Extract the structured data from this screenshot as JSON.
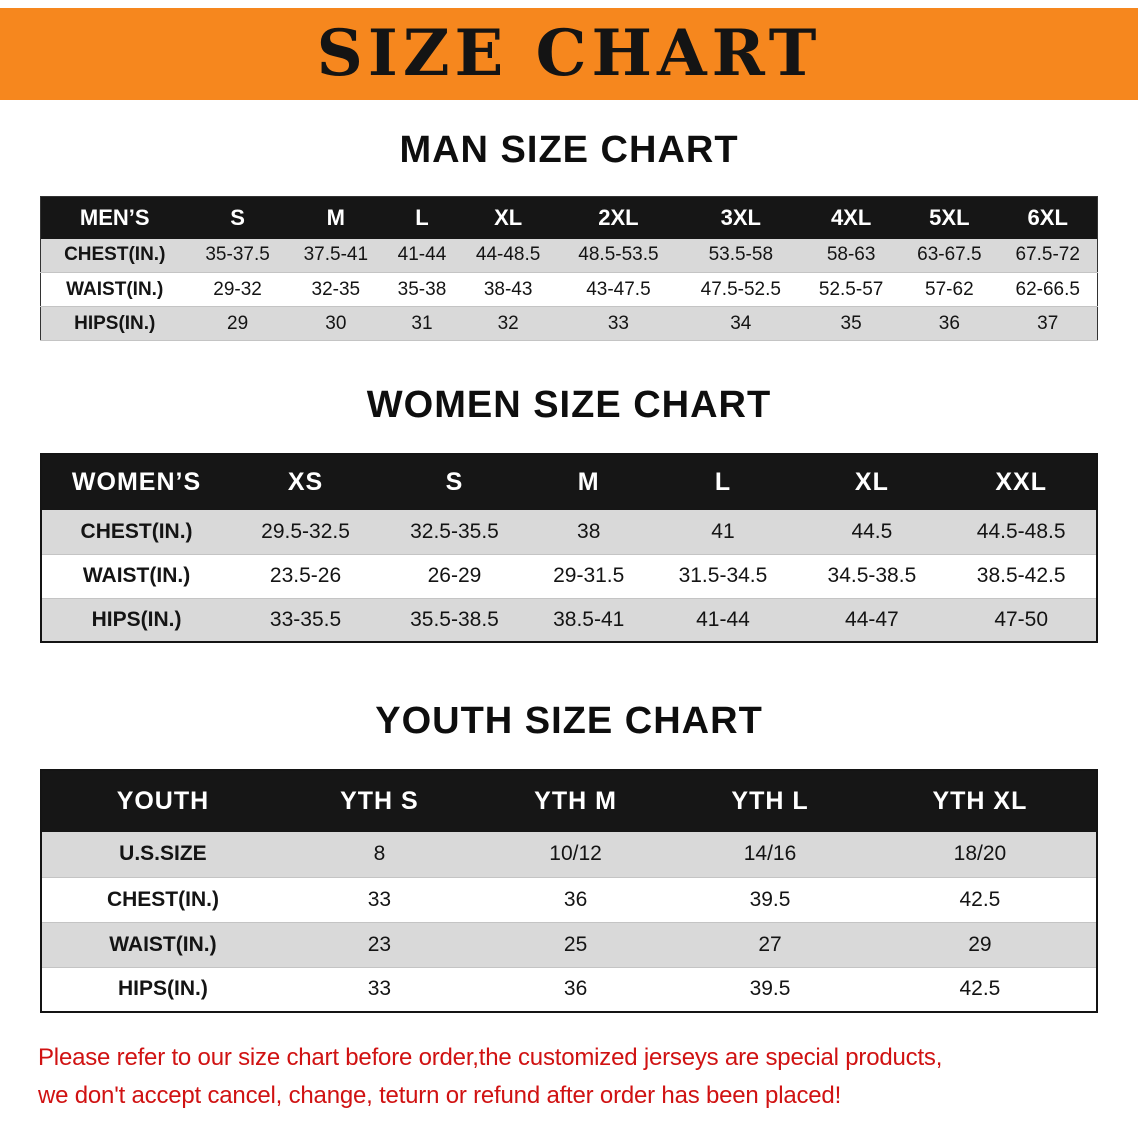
{
  "banner": {
    "title": "SIZE CHART"
  },
  "colors": {
    "banner_bg": "#F6871E",
    "header_bg": "#161616",
    "row_gray": "#D9D9D9",
    "disclaimer_red": "#D01212"
  },
  "sections": [
    {
      "heading": "MAN SIZE CHART",
      "table": {
        "header": [
          "MEN’S",
          "S",
          "M",
          "L",
          "XL",
          "2XL",
          "3XL",
          "4XL",
          "5XL",
          "6XL"
        ],
        "rows": [
          [
            "CHEST(IN.)",
            "35-37.5",
            "37.5-41",
            "41-44",
            "44-48.5",
            "48.5-53.5",
            "53.5-58",
            "58-63",
            "63-67.5",
            "67.5-72"
          ],
          [
            "WAIST(IN.)",
            "29-32",
            "32-35",
            "35-38",
            "38-43",
            "43-47.5",
            "47.5-52.5",
            "52.5-57",
            "57-62",
            "62-66.5"
          ],
          [
            "HIPS(IN.)",
            "29",
            "30",
            "31",
            "32",
            "33",
            "34",
            "35",
            "36",
            "37"
          ]
        ]
      }
    },
    {
      "heading": "WOMEN SIZE CHART",
      "table": {
        "header": [
          "WOMEN’S",
          "XS",
          "S",
          "M",
          "L",
          "XL",
          "XXL"
        ],
        "rows": [
          [
            "CHEST(IN.)",
            "29.5-32.5",
            "32.5-35.5",
            "38",
            "41",
            "44.5",
            "44.5-48.5"
          ],
          [
            "WAIST(IN.)",
            "23.5-26",
            "26-29",
            "29-31.5",
            "31.5-34.5",
            "34.5-38.5",
            "38.5-42.5"
          ],
          [
            "HIPS(IN.)",
            "33-35.5",
            "35.5-38.5",
            "38.5-41",
            "41-44",
            "44-47",
            "47-50"
          ]
        ]
      }
    },
    {
      "heading": "YOUTH SIZE CHART",
      "table": {
        "header": [
          "YOUTH",
          "YTH S",
          "YTH M",
          "YTH L",
          "YTH XL"
        ],
        "rows": [
          [
            "U.S.SIZE",
            "8",
            "10/12",
            "14/16",
            "18/20"
          ],
          [
            "CHEST(IN.)",
            "33",
            "36",
            "39.5",
            "42.5"
          ],
          [
            "WAIST(IN.)",
            "23",
            "25",
            "27",
            "29"
          ],
          [
            "HIPS(IN.)",
            "33",
            "36",
            "39.5",
            "42.5"
          ]
        ]
      }
    }
  ],
  "disclaimer": {
    "lines": [
      "Please refer to our size chart before order,the customized jerseys are special products,",
      "we don't accept cancel, change, teturn or refund after order has been placed!"
    ]
  }
}
